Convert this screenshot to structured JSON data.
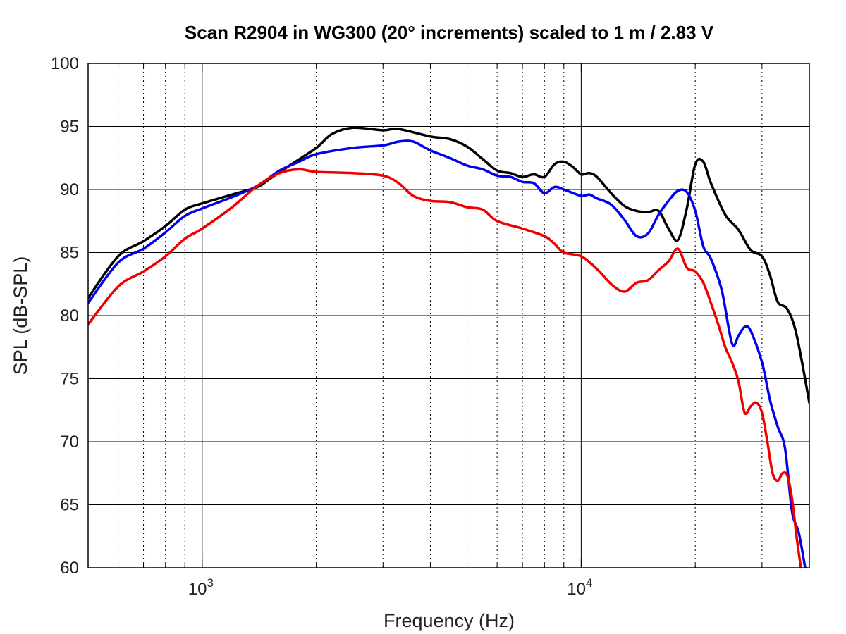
{
  "chart_data": {
    "type": "line",
    "title": "Scan R2904 in WG300 (20° increments) scaled to 1 m / 2.83 V",
    "xlabel": "Frequency (Hz)",
    "ylabel": "SPL (dB-SPL)",
    "xscale": "log",
    "xlim": [
      500,
      40000
    ],
    "ylim": [
      60,
      100
    ],
    "grid": true,
    "legend": "none",
    "xticks": [
      {
        "value": 1000,
        "base": "10",
        "exp": "3"
      },
      {
        "value": 10000,
        "base": "10",
        "exp": "4"
      }
    ],
    "yticks": [
      "60",
      "65",
      "70",
      "75",
      "80",
      "85",
      "90",
      "95",
      "100"
    ],
    "series": [
      {
        "color": "#000000",
        "points": [
          [
            500,
            81.4
          ],
          [
            600,
            84.7
          ],
          [
            700,
            85.9
          ],
          [
            800,
            87.1
          ],
          [
            900,
            88.4
          ],
          [
            1000,
            88.9
          ],
          [
            1200,
            89.6
          ],
          [
            1400,
            90.2
          ],
          [
            1500,
            90.8
          ],
          [
            1700,
            91.9
          ],
          [
            2000,
            93.3
          ],
          [
            2200,
            94.4
          ],
          [
            2500,
            94.9
          ],
          [
            3000,
            94.7
          ],
          [
            3300,
            94.8
          ],
          [
            4000,
            94.2
          ],
          [
            4500,
            94.0
          ],
          [
            5000,
            93.4
          ],
          [
            5500,
            92.4
          ],
          [
            6000,
            91.5
          ],
          [
            6500,
            91.3
          ],
          [
            7000,
            91.0
          ],
          [
            7500,
            91.2
          ],
          [
            8000,
            91.0
          ],
          [
            8500,
            92.0
          ],
          [
            9000,
            92.2
          ],
          [
            9500,
            91.8
          ],
          [
            10000,
            91.2
          ],
          [
            10500,
            91.3
          ],
          [
            11000,
            91.0
          ],
          [
            12000,
            89.7
          ],
          [
            13000,
            88.7
          ],
          [
            14000,
            88.3
          ],
          [
            15000,
            88.2
          ],
          [
            16000,
            88.3
          ],
          [
            17000,
            86.9
          ],
          [
            18000,
            86.0
          ],
          [
            19000,
            88.5
          ],
          [
            20000,
            92.0
          ],
          [
            21000,
            92.2
          ],
          [
            22000,
            90.5
          ],
          [
            24000,
            88.0
          ],
          [
            26000,
            86.8
          ],
          [
            28000,
            85.2
          ],
          [
            30000,
            84.7
          ],
          [
            31500,
            83.2
          ],
          [
            33000,
            81.1
          ],
          [
            35000,
            80.5
          ],
          [
            37000,
            78.5
          ],
          [
            40000,
            73.1
          ]
        ]
      },
      {
        "color": "#0000ee",
        "points": [
          [
            500,
            81.0
          ],
          [
            600,
            84.2
          ],
          [
            700,
            85.3
          ],
          [
            800,
            86.6
          ],
          [
            900,
            87.9
          ],
          [
            1000,
            88.5
          ],
          [
            1200,
            89.4
          ],
          [
            1400,
            90.3
          ],
          [
            1600,
            91.5
          ],
          [
            1800,
            92.2
          ],
          [
            2000,
            92.8
          ],
          [
            2500,
            93.3
          ],
          [
            3000,
            93.5
          ],
          [
            3300,
            93.8
          ],
          [
            3600,
            93.8
          ],
          [
            4000,
            93.1
          ],
          [
            4500,
            92.5
          ],
          [
            5000,
            91.9
          ],
          [
            5500,
            91.6
          ],
          [
            6000,
            91.1
          ],
          [
            6500,
            91.0
          ],
          [
            7000,
            90.6
          ],
          [
            7500,
            90.5
          ],
          [
            8000,
            89.7
          ],
          [
            8500,
            90.2
          ],
          [
            9000,
            90.0
          ],
          [
            10000,
            89.5
          ],
          [
            10500,
            89.6
          ],
          [
            11000,
            89.3
          ],
          [
            12000,
            88.8
          ],
          [
            13000,
            87.6
          ],
          [
            14000,
            86.3
          ],
          [
            15000,
            86.5
          ],
          [
            16000,
            88.0
          ],
          [
            17000,
            89.1
          ],
          [
            18000,
            89.9
          ],
          [
            19000,
            89.8
          ],
          [
            20000,
            88.3
          ],
          [
            21000,
            85.5
          ],
          [
            22000,
            84.5
          ],
          [
            23500,
            82.0
          ],
          [
            25000,
            77.8
          ],
          [
            26000,
            78.4
          ],
          [
            27000,
            79.1
          ],
          [
            28000,
            78.8
          ],
          [
            30000,
            76.3
          ],
          [
            31500,
            73.3
          ],
          [
            33000,
            71.2
          ],
          [
            34500,
            69.5
          ],
          [
            36000,
            64.5
          ],
          [
            37500,
            62.8
          ],
          [
            39000,
            60.0
          ]
        ]
      },
      {
        "color": "#ee0000",
        "points": [
          [
            500,
            79.3
          ],
          [
            600,
            82.3
          ],
          [
            700,
            83.5
          ],
          [
            800,
            84.7
          ],
          [
            900,
            86.1
          ],
          [
            1000,
            86.9
          ],
          [
            1200,
            88.6
          ],
          [
            1400,
            90.3
          ],
          [
            1600,
            91.3
          ],
          [
            1800,
            91.6
          ],
          [
            2000,
            91.4
          ],
          [
            2500,
            91.3
          ],
          [
            3000,
            91.1
          ],
          [
            3300,
            90.5
          ],
          [
            3600,
            89.5
          ],
          [
            4000,
            89.1
          ],
          [
            4500,
            89.0
          ],
          [
            5000,
            88.6
          ],
          [
            5500,
            88.4
          ],
          [
            6000,
            87.5
          ],
          [
            7000,
            86.9
          ],
          [
            8000,
            86.3
          ],
          [
            8500,
            85.7
          ],
          [
            9000,
            85.0
          ],
          [
            10000,
            84.7
          ],
          [
            11000,
            83.7
          ],
          [
            12000,
            82.5
          ],
          [
            13000,
            81.9
          ],
          [
            14000,
            82.6
          ],
          [
            15000,
            82.8
          ],
          [
            16000,
            83.6
          ],
          [
            17000,
            84.3
          ],
          [
            18000,
            85.3
          ],
          [
            19000,
            83.8
          ],
          [
            20000,
            83.5
          ],
          [
            21000,
            82.6
          ],
          [
            22000,
            81.0
          ],
          [
            23000,
            79.3
          ],
          [
            24000,
            77.5
          ],
          [
            25000,
            76.3
          ],
          [
            26000,
            74.8
          ],
          [
            27000,
            72.3
          ],
          [
            28000,
            72.8
          ],
          [
            29000,
            73.1
          ],
          [
            30000,
            72.3
          ],
          [
            31000,
            70.0
          ],
          [
            32000,
            67.5
          ],
          [
            33000,
            66.9
          ],
          [
            34000,
            67.5
          ],
          [
            35000,
            67.3
          ],
          [
            36000,
            65.5
          ],
          [
            37000,
            62.5
          ],
          [
            38000,
            60.0
          ]
        ]
      }
    ]
  }
}
